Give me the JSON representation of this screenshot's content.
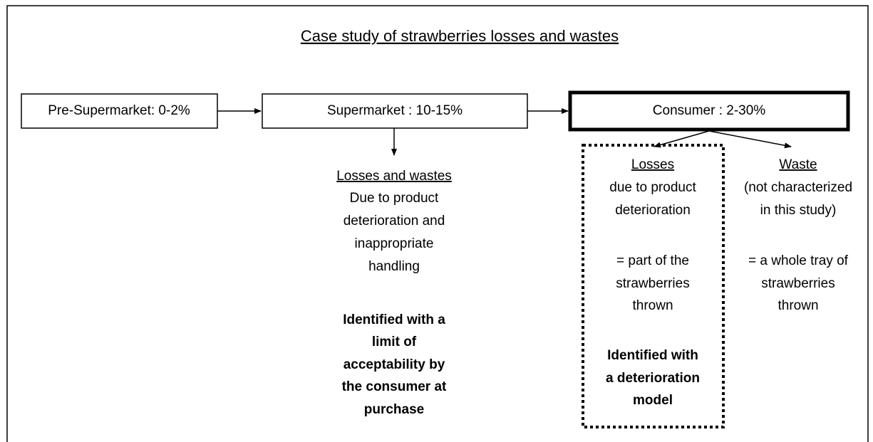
{
  "title": "Case study of strawberries losses and wastes",
  "nodes": [
    {
      "label": "Pre-Supermarket: 0-2%"
    },
    {
      "label": "Supermarket : 10-15%"
    },
    {
      "label": "Consumer : 2-30%"
    }
  ],
  "annotations": [
    {
      "heading": "Losses and wastes",
      "lines": [
        "Due to product",
        "deterioration and",
        "inappropriate",
        "handling"
      ],
      "bold_lines": [
        "Identified with a",
        "limit of",
        "acceptability by",
        "the consumer at",
        "purchase"
      ]
    },
    {
      "heading": "Losses",
      "lines": [
        "due to product",
        "deterioration",
        "= part of the",
        "strawberries",
        "thrown"
      ],
      "bold_lines": [
        "Identified with",
        "a deterioration",
        "model"
      ]
    },
    {
      "heading": "Waste",
      "lines": [
        "(not characterized",
        "in this study)",
        "= a whole tray of",
        "strawberries",
        "thrown"
      ],
      "bold_lines": []
    }
  ]
}
